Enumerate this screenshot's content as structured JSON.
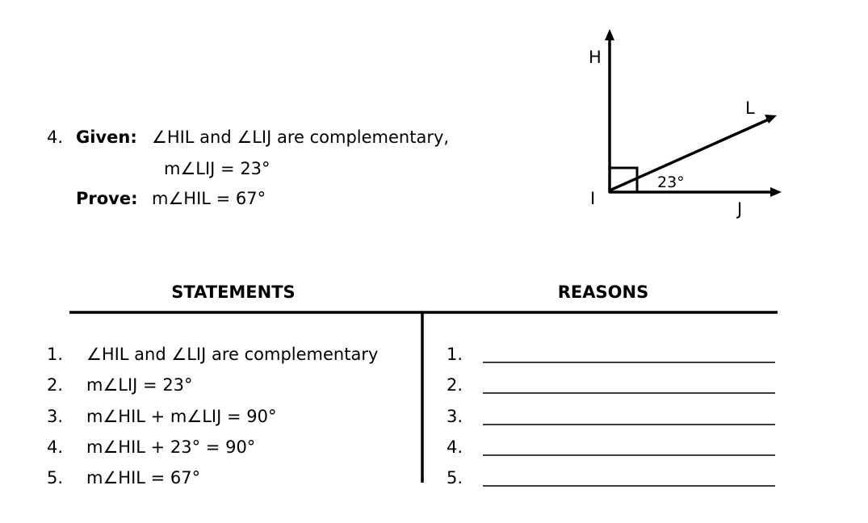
{
  "problem": {
    "number": "4.",
    "given_label": "Given:",
    "given_lines": [
      "∠HIL and ∠LIJ are complementary,",
      "m∠LIJ = 23°"
    ],
    "prove_label": "Prove:",
    "prove_text": "m∠HIL = 67°"
  },
  "diagram": {
    "labels": {
      "h": "H",
      "l": "L",
      "i": "I",
      "j": "J"
    },
    "angle_label": "23°"
  },
  "table": {
    "headers": [
      "STATEMENTS",
      "REASONS"
    ],
    "statements": [
      {
        "number": "1.",
        "text": "∠HIL and ∠LIJ are complementary"
      },
      {
        "number": "2.",
        "text": "m∠LIJ = 23°"
      },
      {
        "number": "3.",
        "text": "m∠HIL + m∠LIJ = 90°"
      },
      {
        "number": "4.",
        "text": "m∠HIL + 23° = 90°"
      },
      {
        "number": "5.",
        "text": "m∠HIL = 67°"
      }
    ],
    "reasons": [
      "1.",
      "2.",
      "3.",
      "4.",
      "5."
    ]
  }
}
